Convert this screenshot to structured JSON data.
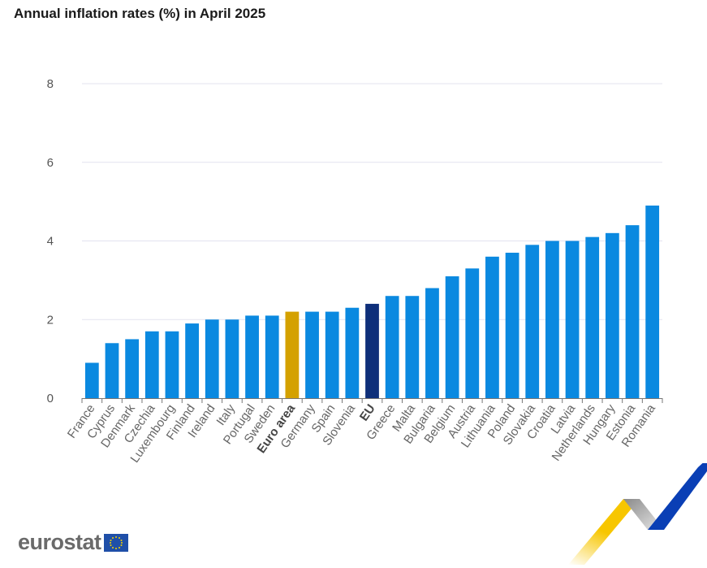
{
  "chart_data": {
    "type": "bar",
    "title": "Annual inflation rates (%) in April 2025",
    "xlabel": "",
    "ylabel": "",
    "ylim": [
      0,
      8
    ],
    "yticks": [
      0,
      2,
      4,
      6,
      8
    ],
    "grid": true,
    "categories": [
      "France",
      "Cyprus",
      "Denmark",
      "Czechia",
      "Luxembourg",
      "Finland",
      "Ireland",
      "Italy",
      "Portugal",
      "Sweden",
      "Euro area",
      "Germany",
      "Spain",
      "Slovenia",
      "EU",
      "Greece",
      "Malta",
      "Bulgaria",
      "Belgium",
      "Austria",
      "Lithuania",
      "Poland",
      "Slovakia",
      "Croatia",
      "Latvia",
      "Netherlands",
      "Hungary",
      "Estonia",
      "Romania"
    ],
    "values": [
      0.9,
      1.4,
      1.5,
      1.7,
      1.7,
      1.9,
      2.0,
      2.0,
      2.1,
      2.1,
      2.2,
      2.2,
      2.2,
      2.3,
      2.4,
      2.6,
      2.6,
      2.8,
      3.1,
      3.3,
      3.6,
      3.7,
      3.9,
      4.0,
      4.0,
      4.1,
      4.2,
      4.4,
      4.9
    ],
    "highlight": {
      "Euro area": "#d4a100",
      "EU": "#0e2f7a"
    },
    "bold_labels": [
      "Euro area",
      "EU"
    ],
    "colors": {
      "default": "#0a89e0"
    }
  },
  "logo": {
    "text": "eurostat"
  }
}
